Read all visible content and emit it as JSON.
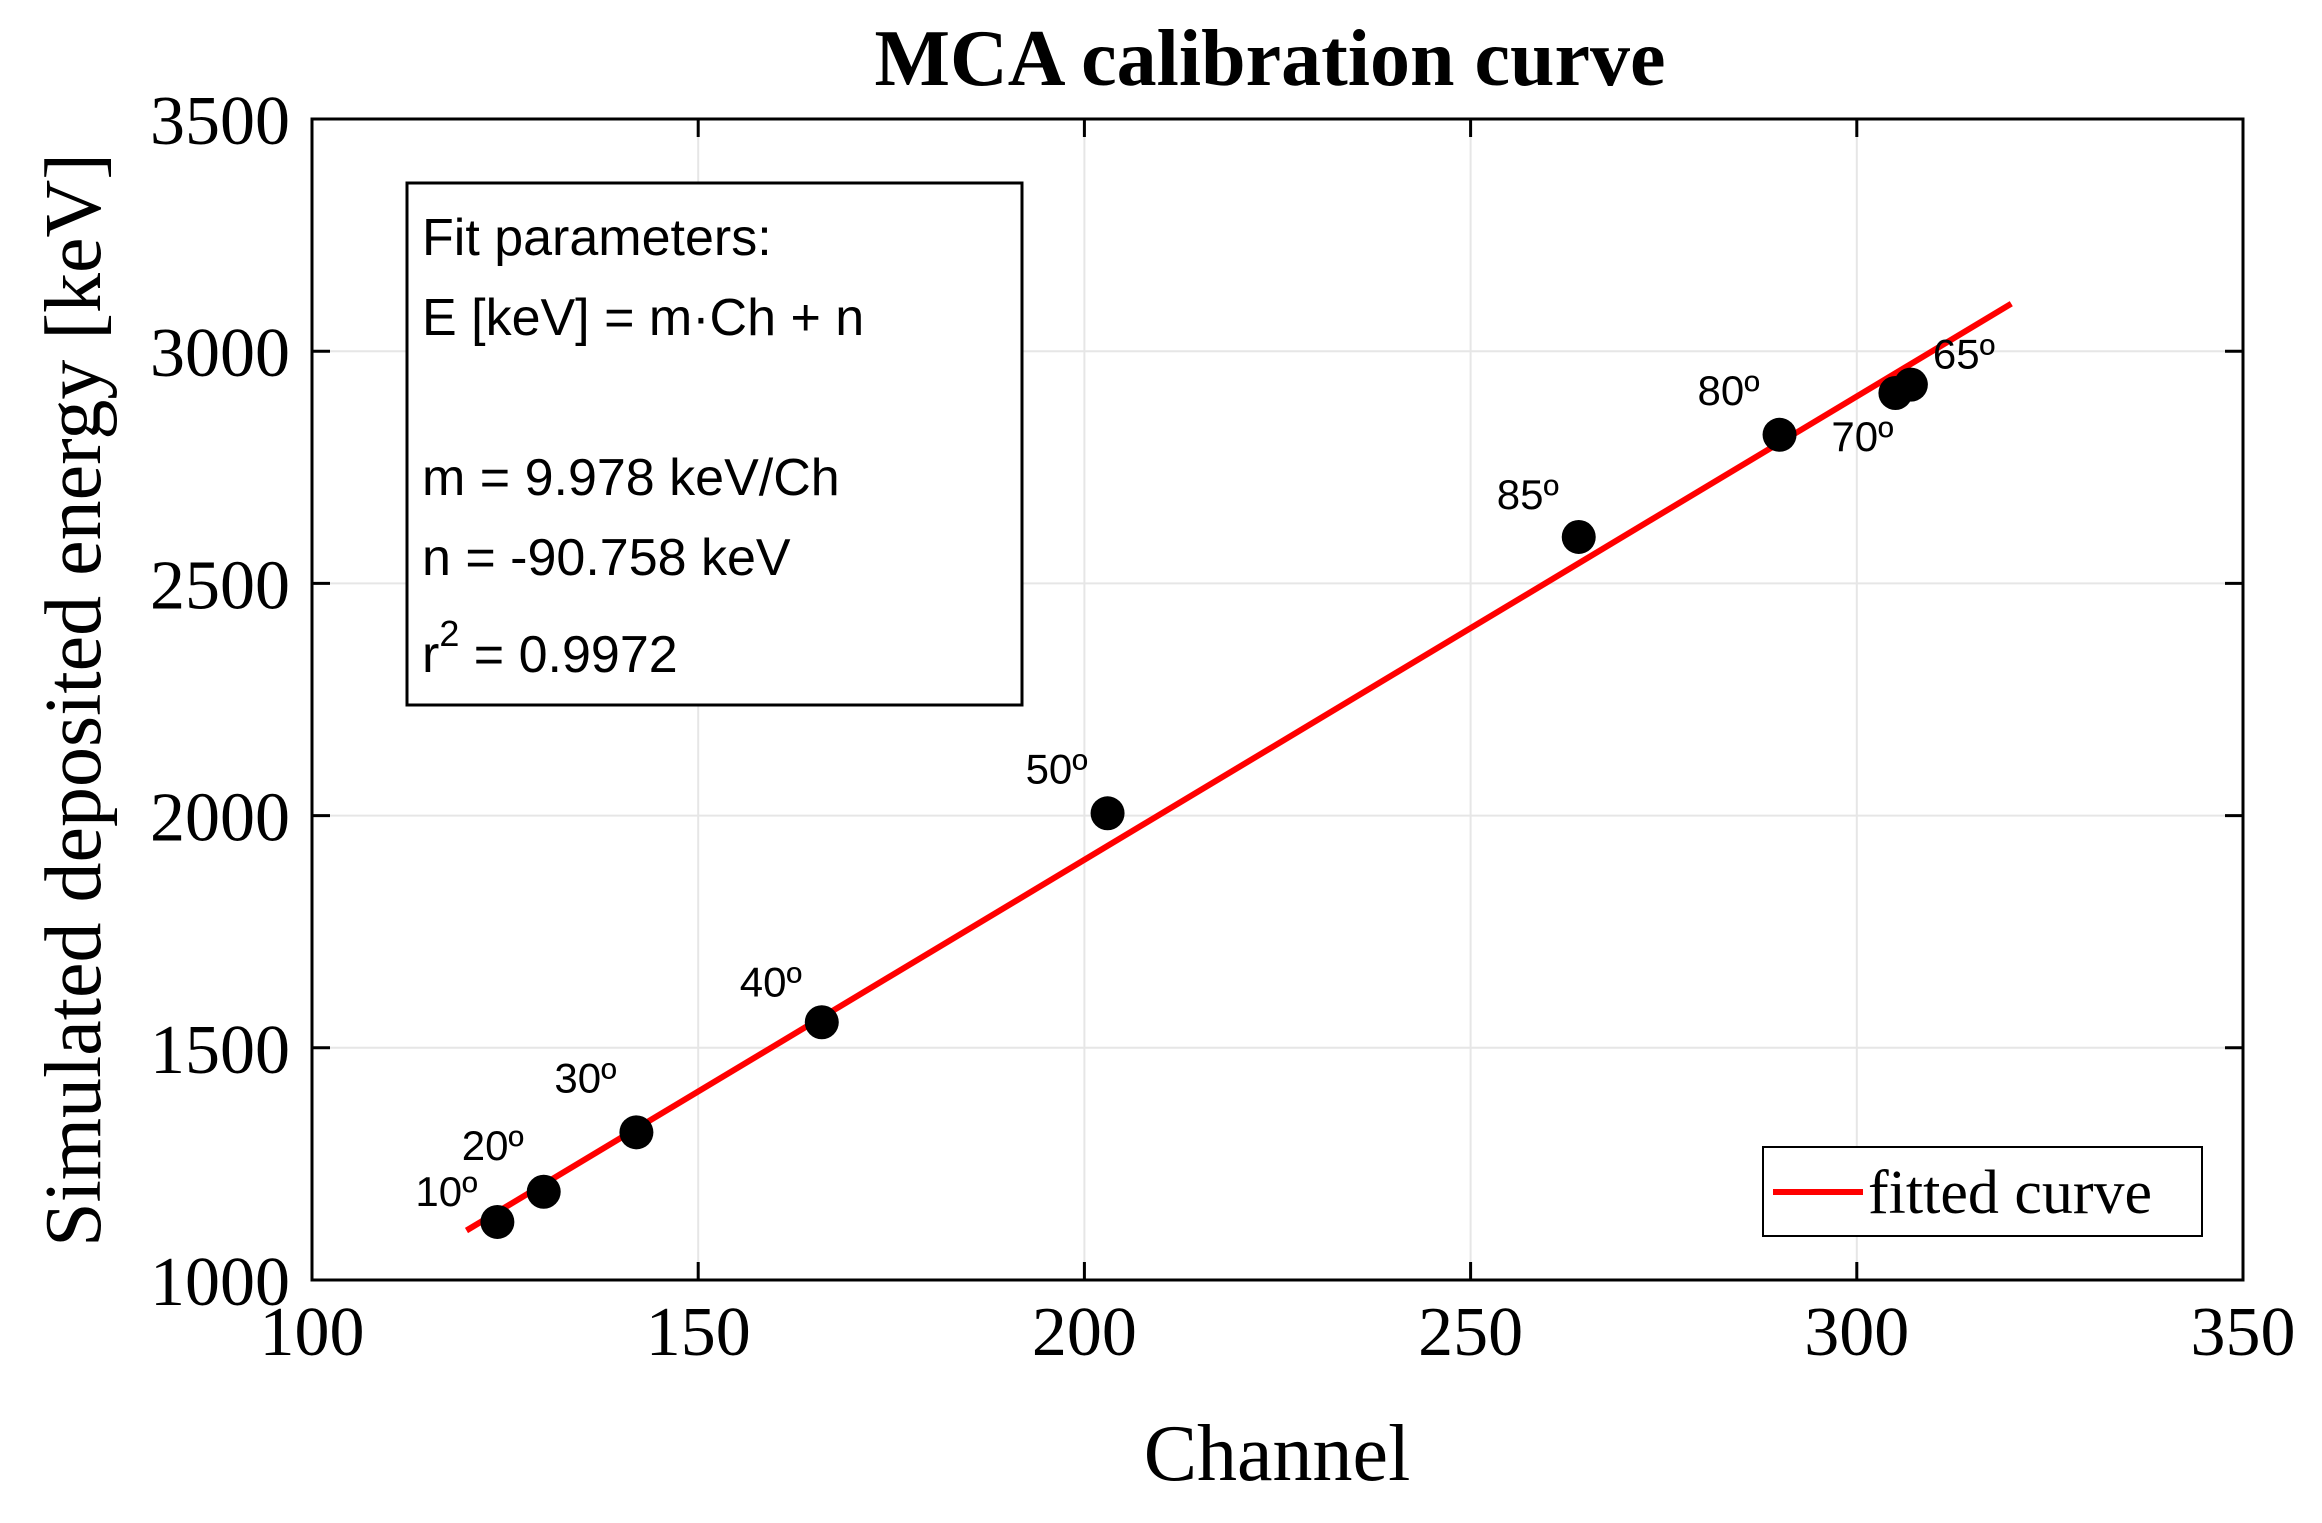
{
  "chart_data": {
    "type": "scatter",
    "title": "MCA calibration curve",
    "xlabel": "Channel",
    "ylabel": "Simulated deposited energy [keV]",
    "xlim": [
      100,
      350
    ],
    "ylim": [
      1000,
      3500
    ],
    "x_ticks": [
      100,
      150,
      200,
      250,
      300,
      350
    ],
    "y_ticks": [
      1000,
      1500,
      2000,
      2500,
      3000,
      3500
    ],
    "grid": true,
    "points": [
      {
        "label": "10º",
        "x": 124,
        "y": 1125
      },
      {
        "label": "20º",
        "x": 130,
        "y": 1190
      },
      {
        "label": "30º",
        "x": 142,
        "y": 1318
      },
      {
        "label": "40º",
        "x": 166,
        "y": 1555
      },
      {
        "label": "50º",
        "x": 203,
        "y": 2005
      },
      {
        "label": "85º",
        "x": 264,
        "y": 2600
      },
      {
        "label": "80º",
        "x": 290,
        "y": 2820
      },
      {
        "label": "70º",
        "x": 305,
        "y": 2910
      },
      {
        "label": "65º",
        "x": 307,
        "y": 2928
      }
    ],
    "fit": {
      "name": "fitted curve",
      "slope": 9.978,
      "intercept": -90.758,
      "x_range": [
        120,
        320
      ],
      "color": "#ff0000"
    },
    "legend": {
      "position": "bottom-right",
      "entries": [
        "fitted curve"
      ]
    },
    "annotation": {
      "line1": "Fit parameters:",
      "line2": "E [keV] = m·Ch + n",
      "line3": "m = 9.978 keV/Ch",
      "line4": "n = -90.758 keV",
      "line5_prefix": "r",
      "line5_sup": "2",
      "line5_suffix": " = 0.9972"
    }
  }
}
